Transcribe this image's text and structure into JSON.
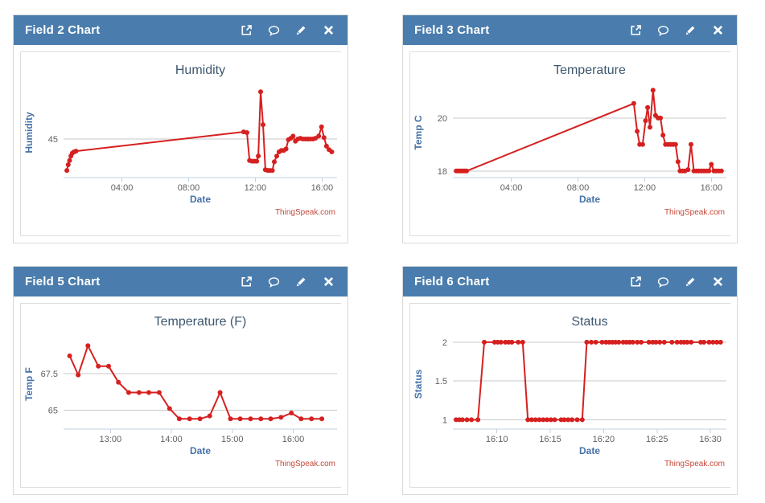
{
  "colors": {
    "header_bg": "#4a7dad",
    "header_text": "#ffffff",
    "series": "#d62020",
    "gridline": "#c8c8c8",
    "axis_line": "#c0d0e0",
    "tick_label": "#606060",
    "axis_title": "#4572a7",
    "chart_title": "#3e576f",
    "credits": "#c4483a"
  },
  "panels": [
    {
      "title": "Field 2 Chart",
      "toolbar": [
        "external-link-icon",
        "comment-icon",
        "edit-icon",
        "close-icon"
      ]
    },
    {
      "title": "Field 3 Chart",
      "toolbar": [
        "external-link-icon",
        "comment-icon",
        "edit-icon",
        "close-icon"
      ]
    },
    {
      "title": "Field 5 Chart",
      "toolbar": [
        "external-link-icon",
        "comment-icon",
        "edit-icon",
        "close-icon"
      ]
    },
    {
      "title": "Field 6 Chart",
      "toolbar": [
        "external-link-icon",
        "comment-icon",
        "edit-icon",
        "close-icon"
      ]
    }
  ],
  "chart_data": [
    {
      "type": "line",
      "title": "Humidity",
      "xlabel": "Date",
      "ylabel": "Humidity",
      "credits": "ThingSpeak.com",
      "color": "#d62020",
      "grid": true,
      "xlim": [
        0.5,
        16.9
      ],
      "ylim": [
        42.3,
        48.6
      ],
      "xticks": [
        {
          "v": 4,
          "label": "04:00"
        },
        {
          "v": 8,
          "label": "08:00"
        },
        {
          "v": 12,
          "label": "12:00"
        },
        {
          "v": 16,
          "label": "16:00"
        }
      ],
      "yticks": [
        {
          "v": 45,
          "label": "45"
        }
      ],
      "x": [
        0.7,
        0.78,
        0.86,
        0.94,
        1.02,
        1.12,
        1.25,
        11.3,
        11.5,
        11.65,
        11.8,
        11.95,
        12.08,
        12.18,
        12.32,
        12.46,
        12.6,
        12.74,
        12.88,
        13.02,
        13.14,
        13.28,
        13.42,
        13.56,
        13.7,
        13.84,
        13.98,
        14.12,
        14.26,
        14.4,
        14.55,
        14.7,
        14.85,
        15.0,
        15.15,
        15.3,
        15.45,
        15.6,
        15.8,
        15.97,
        16.12,
        16.27,
        16.42,
        16.58
      ],
      "y": [
        42.8,
        43.2,
        43.5,
        43.8,
        44.0,
        44.1,
        44.15,
        45.5,
        45.45,
        43.5,
        43.45,
        43.45,
        43.45,
        43.8,
        48.3,
        46.0,
        42.85,
        42.8,
        42.8,
        42.8,
        43.4,
        43.8,
        44.1,
        44.2,
        44.2,
        44.3,
        44.95,
        45.05,
        45.2,
        44.85,
        45.0,
        45.05,
        45.0,
        45.0,
        45.0,
        45.0,
        45.0,
        45.05,
        45.2,
        45.85,
        45.1,
        44.5,
        44.25,
        44.1
      ]
    },
    {
      "type": "line",
      "title": "Temperature",
      "xlabel": "Date",
      "ylabel": "Temp C",
      "credits": "ThingSpeak.com",
      "color": "#d62020",
      "grid": true,
      "xlim": [
        0.5,
        16.9
      ],
      "ylim": [
        17.75,
        21.15
      ],
      "xticks": [
        {
          "v": 4,
          "label": "04:00"
        },
        {
          "v": 8,
          "label": "08:00"
        },
        {
          "v": 12,
          "label": "12:00"
        },
        {
          "v": 16,
          "label": "16:00"
        }
      ],
      "yticks": [
        {
          "v": 18,
          "label": "18"
        },
        {
          "v": 20,
          "label": "20"
        }
      ],
      "x": [
        0.7,
        0.8,
        0.9,
        1.0,
        1.1,
        1.2,
        1.32,
        11.35,
        11.55,
        11.7,
        11.88,
        12.05,
        12.18,
        12.32,
        12.5,
        12.65,
        12.8,
        12.95,
        13.1,
        13.25,
        13.4,
        13.55,
        13.7,
        13.85,
        14.0,
        14.12,
        14.27,
        14.42,
        14.6,
        14.78,
        14.95,
        15.1,
        15.25,
        15.4,
        15.55,
        15.7,
        15.85,
        16.0,
        16.15,
        16.3,
        16.45,
        16.6
      ],
      "y": [
        18,
        18,
        18,
        18,
        18,
        18,
        18,
        20.55,
        19.5,
        19.0,
        19.0,
        19.9,
        20.4,
        19.65,
        21.05,
        20.1,
        20.0,
        20.0,
        19.35,
        19.0,
        19.0,
        19.0,
        19.0,
        19.0,
        18.35,
        18.0,
        18.0,
        18.0,
        18.05,
        19.0,
        18.0,
        18.0,
        18.0,
        18.0,
        18.0,
        18.0,
        18.0,
        18.25,
        18.0,
        18.0,
        18.0,
        18.0
      ]
    },
    {
      "type": "line",
      "title": "Temperature (F)",
      "xlabel": "Date",
      "ylabel": "Temp F",
      "credits": "ThingSpeak.com",
      "color": "#d62020",
      "grid": true,
      "xlim": [
        12.23,
        16.72
      ],
      "ylim": [
        63.7,
        69.85
      ],
      "xticks": [
        {
          "v": 13,
          "label": "13:00"
        },
        {
          "v": 14,
          "label": "14:00"
        },
        {
          "v": 15,
          "label": "15:00"
        },
        {
          "v": 16,
          "label": "16:00"
        }
      ],
      "yticks": [
        {
          "v": 65,
          "label": "65"
        },
        {
          "v": 67.5,
          "label": "67.5"
        }
      ],
      "x": [
        12.33,
        12.47,
        12.63,
        12.8,
        12.97,
        13.13,
        13.3,
        13.47,
        13.63,
        13.8,
        13.97,
        14.13,
        14.3,
        14.47,
        14.63,
        14.8,
        14.97,
        15.13,
        15.3,
        15.47,
        15.63,
        15.8,
        15.97,
        16.13,
        16.3,
        16.47
      ],
      "y": [
        68.7,
        67.4,
        69.4,
        68.0,
        68.0,
        66.9,
        66.2,
        66.2,
        66.2,
        66.2,
        65.1,
        64.4,
        64.4,
        64.4,
        64.6,
        66.2,
        64.4,
        64.4,
        64.4,
        64.4,
        64.4,
        64.5,
        64.8,
        64.4,
        64.4,
        64.4
      ]
    },
    {
      "type": "line",
      "title": "Status",
      "xlabel": "Date",
      "ylabel": "Status",
      "credits": "ThingSpeak.com",
      "color": "#d62020",
      "grid": true,
      "xlim": [
        16.098,
        16.525
      ],
      "ylim": [
        0.88,
        2.04
      ],
      "xticks": [
        {
          "v": 16.1667,
          "label": "16:10"
        },
        {
          "v": 16.25,
          "label": "16:15"
        },
        {
          "v": 16.3333,
          "label": "16:20"
        },
        {
          "v": 16.4167,
          "label": "16:25"
        },
        {
          "v": 16.5,
          "label": "16:30"
        }
      ],
      "yticks": [
        {
          "v": 1,
          "label": "1"
        },
        {
          "v": 1.5,
          "label": "1.5"
        },
        {
          "v": 2,
          "label": "2"
        }
      ],
      "x": [
        16.103,
        16.108,
        16.113,
        16.12,
        16.127,
        16.137,
        16.147,
        16.163,
        16.168,
        16.173,
        16.18,
        16.185,
        16.19,
        16.2,
        16.207,
        16.215,
        16.221,
        16.227,
        16.233,
        16.239,
        16.245,
        16.251,
        16.257,
        16.267,
        16.272,
        16.278,
        16.284,
        16.292,
        16.3,
        16.307,
        16.314,
        16.321,
        16.331,
        16.337,
        16.342,
        16.347,
        16.352,
        16.357,
        16.364,
        16.369,
        16.374,
        16.379,
        16.386,
        16.392,
        16.404,
        16.41,
        16.415,
        16.421,
        16.428,
        16.44,
        16.448,
        16.454,
        16.459,
        16.464,
        16.47,
        16.485,
        16.49,
        16.498,
        16.504,
        16.51,
        16.516
      ],
      "y": [
        1,
        1,
        1,
        1,
        1,
        1,
        2,
        2,
        2,
        2,
        2,
        2,
        2,
        2,
        2,
        1,
        1,
        1,
        1,
        1,
        1,
        1,
        1,
        1,
        1,
        1,
        1,
        1,
        1,
        2,
        2,
        2,
        2,
        2,
        2,
        2,
        2,
        2,
        2,
        2,
        2,
        2,
        2,
        2,
        2,
        2,
        2,
        2,
        2,
        2,
        2,
        2,
        2,
        2,
        2,
        2,
        2,
        2,
        2,
        2,
        2
      ]
    }
  ]
}
